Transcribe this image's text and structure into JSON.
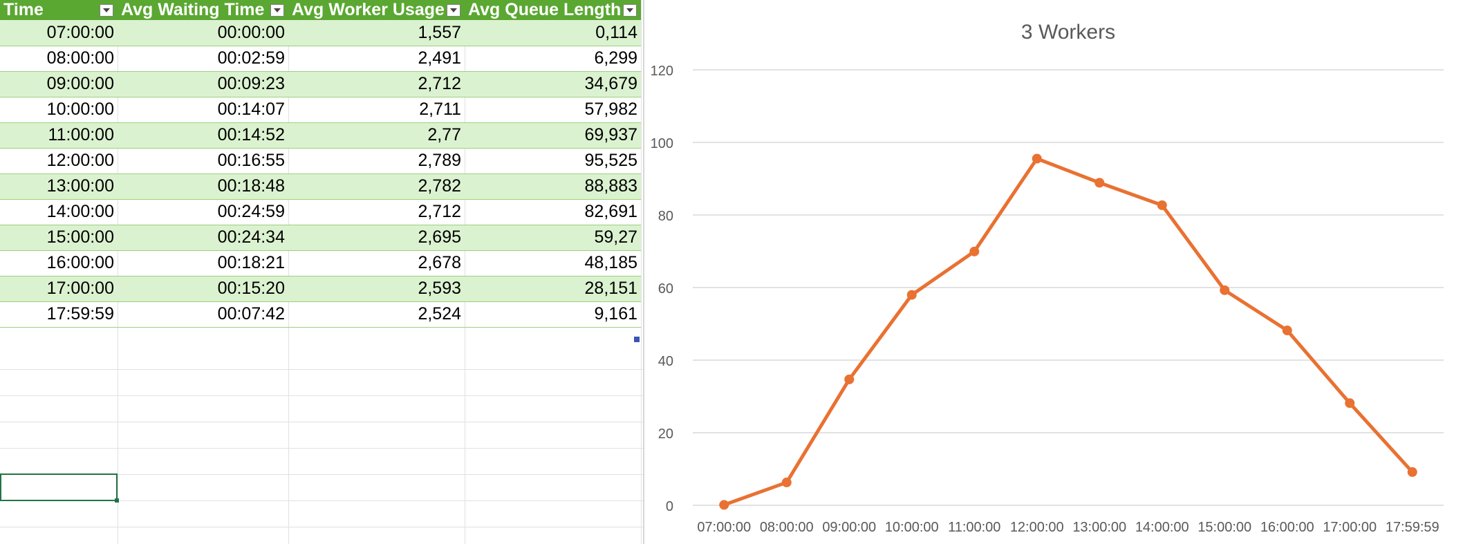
{
  "table": {
    "headers": [
      "Time",
      "Avg Waiting Time",
      "Avg Worker Usage",
      "Avg Queue Length"
    ],
    "rows": [
      [
        "07:00:00",
        "00:00:00",
        "1,557",
        "0,114"
      ],
      [
        "08:00:00",
        "00:02:59",
        "2,491",
        "6,299"
      ],
      [
        "09:00:00",
        "00:09:23",
        "2,712",
        "34,679"
      ],
      [
        "10:00:00",
        "00:14:07",
        "2,711",
        "57,982"
      ],
      [
        "11:00:00",
        "00:14:52",
        "2,77",
        "69,937"
      ],
      [
        "12:00:00",
        "00:16:55",
        "2,789",
        "95,525"
      ],
      [
        "13:00:00",
        "00:18:48",
        "2,782",
        "88,883"
      ],
      [
        "14:00:00",
        "00:24:59",
        "2,712",
        "82,691"
      ],
      [
        "15:00:00",
        "00:24:34",
        "2,695",
        "59,27"
      ],
      [
        "16:00:00",
        "00:18:21",
        "2,678",
        "48,185"
      ],
      [
        "17:00:00",
        "00:15:20",
        "2,593",
        "28,151"
      ],
      [
        "17:59:59",
        "00:07:42",
        "2,524",
        "9,161"
      ]
    ]
  },
  "colors": {
    "header_green": "#5aa731",
    "band_green": "#dbf2d0",
    "series_orange": "#e97132"
  },
  "chart_data": {
    "type": "line",
    "title": "3 Workers",
    "categories": [
      "07:00:00",
      "08:00:00",
      "09:00:00",
      "10:00:00",
      "11:00:00",
      "12:00:00",
      "13:00:00",
      "14:00:00",
      "15:00:00",
      "16:00:00",
      "17:00:00",
      "17:59:59"
    ],
    "series": [
      {
        "values": [
          0.114,
          6.299,
          34.679,
          57.982,
          69.937,
          95.525,
          88.883,
          82.691,
          59.27,
          48.185,
          28.151,
          9.161
        ]
      }
    ],
    "ylim": [
      0,
      120
    ],
    "yticks": [
      0,
      20,
      40,
      60,
      80,
      100,
      120
    ],
    "grid": true,
    "legend": "none"
  }
}
